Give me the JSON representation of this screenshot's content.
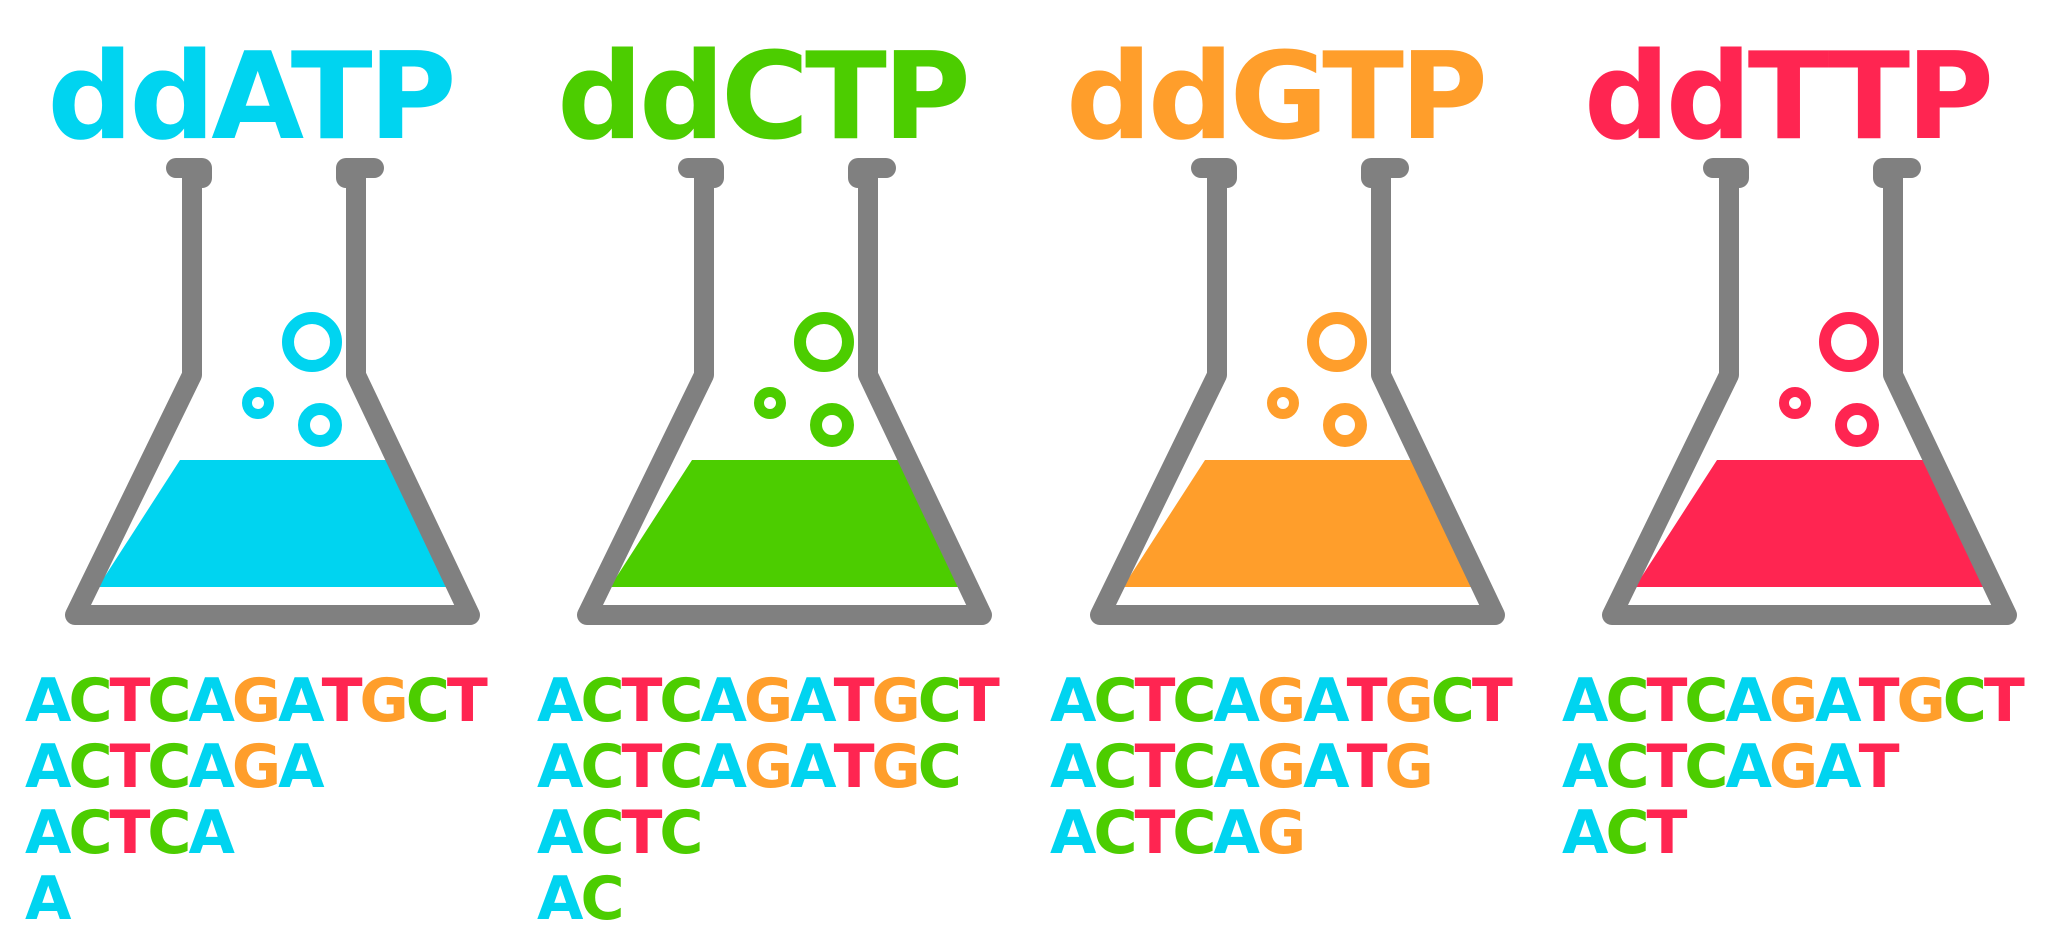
{
  "colors": {
    "A": "#00d4f0",
    "C": "#4ccd00",
    "G": "#ff9e2b",
    "T": "#ff2551",
    "glass": "#808080"
  },
  "panels": [
    {
      "title": "ddATP",
      "color": "#00d4f0",
      "icon": "flask-icon",
      "sequences": [
        "ACTCAGATGCT",
        "ACTCAGA",
        "ACTCA",
        "A"
      ]
    },
    {
      "title": "ddCTP",
      "color": "#4ccd00",
      "icon": "flask-icon",
      "sequences": [
        "ACTCAGATGCT",
        "ACTCAGATGC",
        "ACTC",
        "AC"
      ]
    },
    {
      "title": "ddGTP",
      "color": "#ff9e2b",
      "icon": "flask-icon",
      "sequences": [
        "ACTCAGATGCT",
        "ACTCAGATG",
        "ACTCAG"
      ]
    },
    {
      "title": "ddTTP",
      "color": "#ff2551",
      "icon": "flask-icon",
      "sequences": [
        "ACTCAGATGCT",
        "ACTCAGAT",
        "ACT"
      ]
    }
  ]
}
